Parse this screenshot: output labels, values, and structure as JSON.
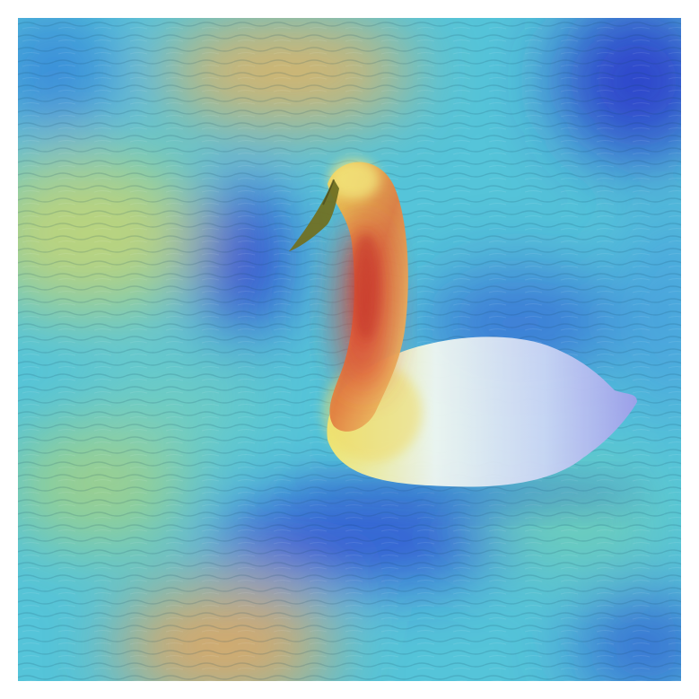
{
  "image": {
    "subject": "swan-on-water",
    "overlay": "attention-heatmap",
    "colormap": [
      "#1a2bd6",
      "#2b74e0",
      "#38c8e6",
      "#8fd9a8",
      "#e7e05a",
      "#f0a040",
      "#e0402c"
    ],
    "colors": {
      "water_base": "#4fc2d8",
      "swan_body": "#dff3f6",
      "swan_highlight_red": "#d83a2a",
      "beak": "#6a6a1a"
    }
  }
}
